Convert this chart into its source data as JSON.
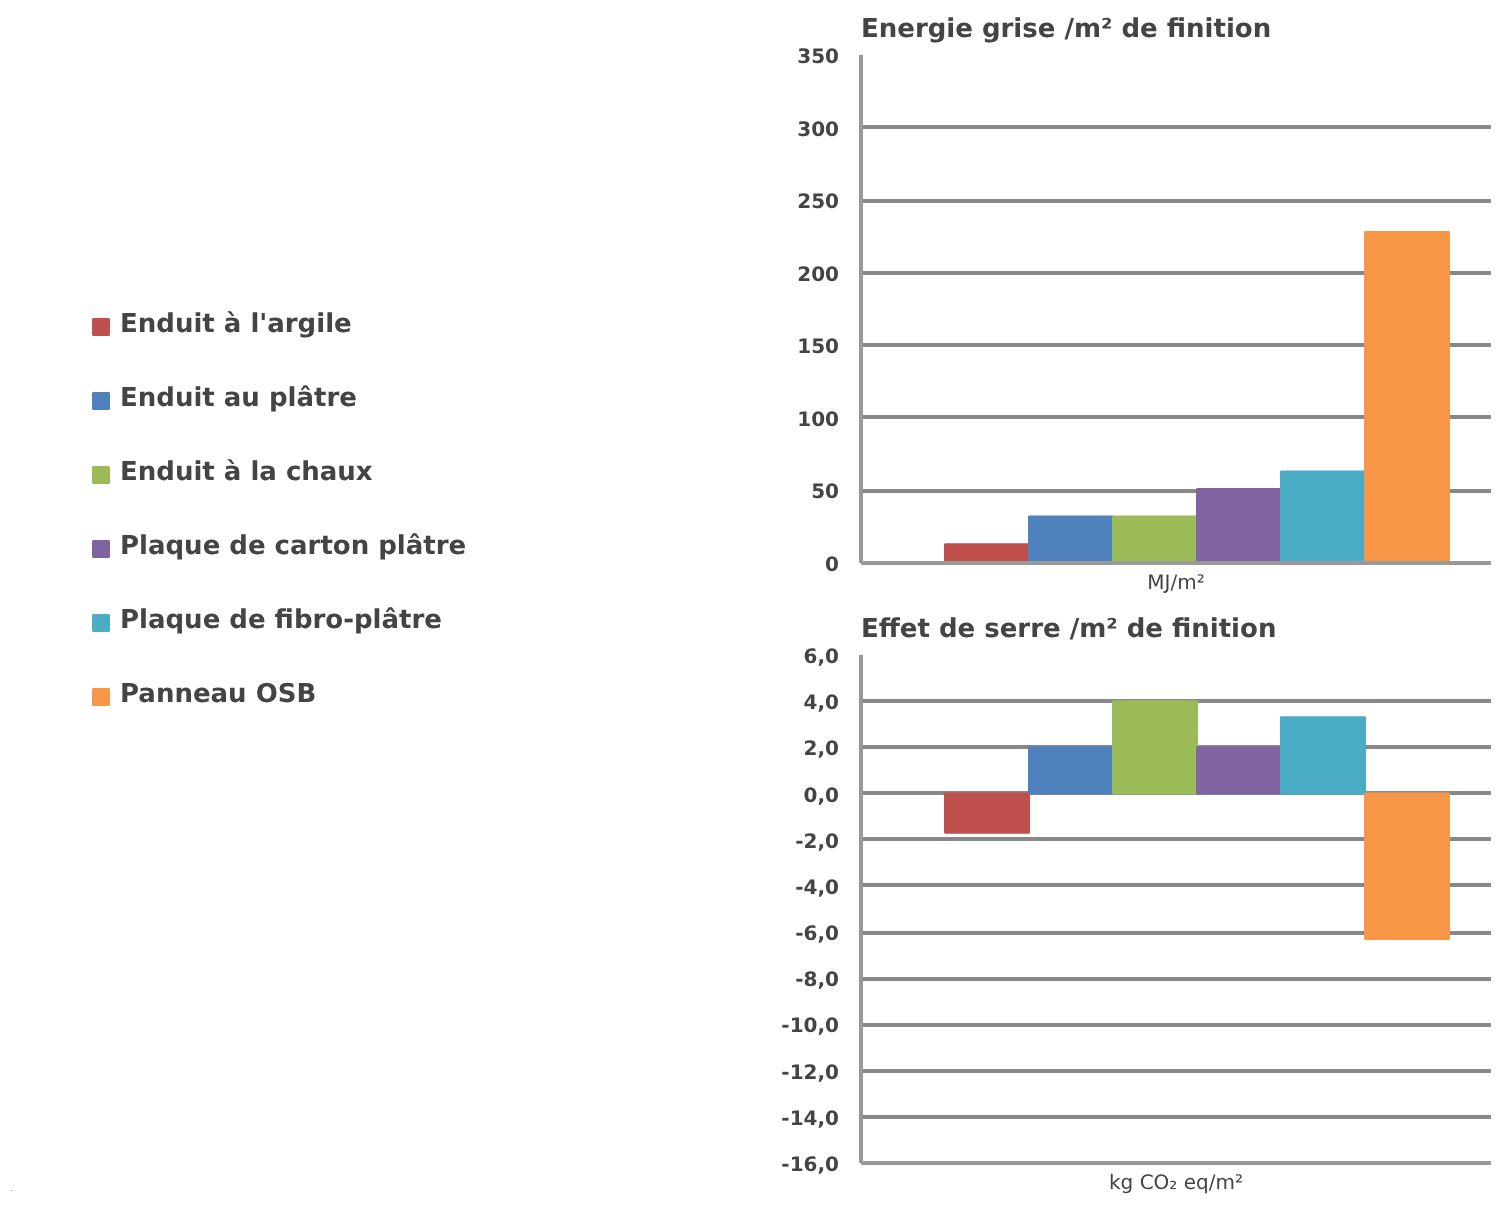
{
  "chart_data": [
    {
      "type": "bar",
      "title": "Energie grise /m² de finition",
      "xlabel": "MJ/m²",
      "categories": [
        null
      ],
      "series": [
        {
          "name": "Enduit à l'argile",
          "color": "#c0504d",
          "values": [
            13
          ]
        },
        {
          "name": "Enduit au plâtre",
          "color": "#4f81bd",
          "values": [
            32
          ]
        },
        {
          "name": "Enduit à la chaux",
          "color": "#9bbb59",
          "values": [
            32
          ]
        },
        {
          "name": "Plaque de carton plâtre",
          "color": "#8064a2",
          "values": [
            51
          ]
        },
        {
          "name": "Plaque de fibro-plâtre",
          "color": "#4bacc6",
          "values": [
            63
          ]
        },
        {
          "name": "Panneau OSB",
          "color": "#f79646",
          "values": [
            228
          ]
        }
      ],
      "ylim": [
        0,
        350
      ],
      "yticks": [
        0,
        50,
        100,
        150,
        200,
        250,
        300,
        350
      ],
      "grid": "y",
      "legend": "left",
      "tick_labels": "y"
    },
    {
      "type": "bar",
      "title": "Effet de serre /m² de finition",
      "xlabel": "kg CO₂ eq/m²",
      "categories": [
        null
      ],
      "series": [
        {
          "color": "#c0504d",
          "values": [
            -1.7
          ]
        },
        {
          "color": "#4f81bd",
          "values": [
            2.0
          ]
        },
        {
          "color": "#9bbb59",
          "values": [
            4.0
          ]
        },
        {
          "color": "#8064a2",
          "values": [
            2.0
          ]
        },
        {
          "color": "#4bacc6",
          "values": [
            3.3
          ]
        },
        {
          "color": "#f79646",
          "values": [
            -6.3
          ]
        }
      ],
      "ylim": [
        -16,
        6
      ],
      "yticks": [
        {
          "value": 6,
          "label": "6,0"
        },
        {
          "value": 4,
          "label": "4,0"
        },
        {
          "value": 2,
          "label": "2,0"
        },
        {
          "value": 0,
          "label": "0,0"
        },
        {
          "value": -2,
          "label": "-2,0"
        },
        {
          "value": -4,
          "label": "-4,0"
        },
        {
          "value": -6,
          "label": "-6,0"
        },
        {
          "value": -8,
          "label": "-8,0"
        },
        {
          "value": -10,
          "label": "-10,0"
        },
        {
          "value": -12,
          "label": "-12,0"
        },
        {
          "value": -14,
          "label": "-14,0"
        },
        {
          "value": -16,
          "label": "-16,0"
        }
      ],
      "grid": "y",
      "tick_labels": "y"
    }
  ]
}
